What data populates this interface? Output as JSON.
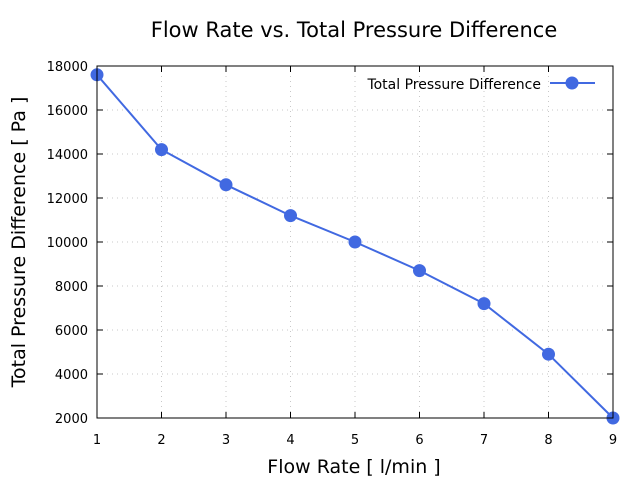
{
  "chart_data": {
    "type": "line",
    "title": "Flow Rate vs. Total Pressure Difference",
    "xlabel": "Flow Rate [ l/min ]",
    "ylabel": "Total Pressure Difference [ Pa ]",
    "xlim": [
      1,
      9
    ],
    "ylim": [
      2000,
      18000
    ],
    "xticks": [
      1,
      2,
      3,
      4,
      5,
      6,
      7,
      8,
      9
    ],
    "yticks": [
      2000,
      4000,
      6000,
      8000,
      10000,
      12000,
      14000,
      16000,
      18000
    ],
    "grid": true,
    "legend_position": "top-right",
    "series": [
      {
        "name": "Total Pressure Difference",
        "color": "#4169e1",
        "marker": "circle",
        "x": [
          1,
          2,
          3,
          4,
          5,
          6,
          7,
          8,
          9
        ],
        "y": [
          17600,
          14200,
          12600,
          11200,
          10000,
          8700,
          7200,
          4900,
          2000
        ]
      }
    ]
  }
}
